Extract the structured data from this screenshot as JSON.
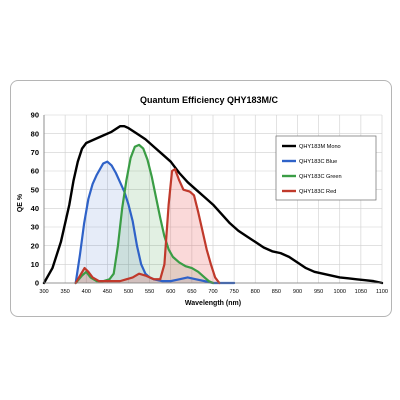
{
  "chart_data": {
    "type": "line",
    "title": "Quantum Efficiency QHY183M/C",
    "xlabel": "Wavelength (nm)",
    "ylabel": "QE %",
    "xlim": [
      300,
      1100
    ],
    "ylim": [
      0,
      90
    ],
    "x_ticks": [
      300,
      350,
      400,
      450,
      500,
      550,
      600,
      650,
      700,
      750,
      800,
      850,
      900,
      950,
      1000,
      1050,
      1100
    ],
    "y_ticks": [
      0,
      10,
      20,
      30,
      40,
      50,
      60,
      70,
      80,
      90
    ],
    "grid": true,
    "legend_position": "right",
    "series": [
      {
        "name": "QHY183M Mono",
        "color": "#000000",
        "points": [
          [
            300,
            0
          ],
          [
            320,
            8
          ],
          [
            340,
            22
          ],
          [
            360,
            42
          ],
          [
            370,
            55
          ],
          [
            380,
            65
          ],
          [
            390,
            72
          ],
          [
            400,
            75
          ],
          [
            420,
            77
          ],
          [
            440,
            79
          ],
          [
            460,
            81
          ],
          [
            480,
            84
          ],
          [
            490,
            84
          ],
          [
            500,
            83
          ],
          [
            520,
            80
          ],
          [
            540,
            77
          ],
          [
            560,
            73
          ],
          [
            580,
            69
          ],
          [
            600,
            65
          ],
          [
            620,
            59
          ],
          [
            640,
            54
          ],
          [
            660,
            50
          ],
          [
            680,
            46
          ],
          [
            700,
            42
          ],
          [
            720,
            37
          ],
          [
            740,
            32
          ],
          [
            760,
            28
          ],
          [
            780,
            25
          ],
          [
            800,
            22
          ],
          [
            820,
            19
          ],
          [
            840,
            17
          ],
          [
            860,
            16
          ],
          [
            880,
            14
          ],
          [
            900,
            11
          ],
          [
            920,
            8
          ],
          [
            940,
            6
          ],
          [
            960,
            5
          ],
          [
            980,
            4
          ],
          [
            1000,
            3
          ],
          [
            1020,
            2.5
          ],
          [
            1040,
            2
          ],
          [
            1060,
            1.5
          ],
          [
            1080,
            1
          ],
          [
            1100,
            0
          ]
        ]
      },
      {
        "name": "QHY183C Blue",
        "color": "#2f62c8",
        "points": [
          [
            375,
            0
          ],
          [
            385,
            15
          ],
          [
            395,
            32
          ],
          [
            405,
            45
          ],
          [
            415,
            53
          ],
          [
            425,
            58
          ],
          [
            440,
            64
          ],
          [
            450,
            65
          ],
          [
            460,
            63
          ],
          [
            470,
            59
          ],
          [
            480,
            54
          ],
          [
            490,
            49
          ],
          [
            500,
            42
          ],
          [
            510,
            33
          ],
          [
            520,
            20
          ],
          [
            530,
            10
          ],
          [
            540,
            5
          ],
          [
            550,
            3
          ],
          [
            560,
            2
          ],
          [
            580,
            1
          ],
          [
            600,
            1
          ],
          [
            620,
            2
          ],
          [
            640,
            3
          ],
          [
            660,
            2
          ],
          [
            680,
            1
          ],
          [
            700,
            0
          ],
          [
            750,
            0
          ]
        ]
      },
      {
        "name": "QHY183C Green",
        "color": "#3a9d45",
        "points": [
          [
            375,
            0
          ],
          [
            390,
            4
          ],
          [
            400,
            6
          ],
          [
            410,
            3
          ],
          [
            425,
            1
          ],
          [
            440,
            1
          ],
          [
            455,
            2
          ],
          [
            465,
            5
          ],
          [
            475,
            20
          ],
          [
            485,
            40
          ],
          [
            495,
            55
          ],
          [
            505,
            67
          ],
          [
            515,
            73
          ],
          [
            525,
            74
          ],
          [
            535,
            72
          ],
          [
            545,
            66
          ],
          [
            555,
            57
          ],
          [
            565,
            46
          ],
          [
            575,
            35
          ],
          [
            585,
            25
          ],
          [
            595,
            18
          ],
          [
            605,
            14
          ],
          [
            620,
            11
          ],
          [
            635,
            9
          ],
          [
            650,
            8
          ],
          [
            665,
            6
          ],
          [
            680,
            3
          ],
          [
            690,
            1
          ],
          [
            700,
            0
          ]
        ]
      },
      {
        "name": "QHY183C Red",
        "color": "#c0392b",
        "points": [
          [
            375,
            0
          ],
          [
            388,
            5
          ],
          [
            396,
            8
          ],
          [
            405,
            6
          ],
          [
            415,
            3
          ],
          [
            430,
            1
          ],
          [
            450,
            1
          ],
          [
            480,
            1
          ],
          [
            510,
            3
          ],
          [
            525,
            5
          ],
          [
            540,
            4
          ],
          [
            560,
            2
          ],
          [
            575,
            2
          ],
          [
            585,
            10
          ],
          [
            595,
            42
          ],
          [
            603,
            60
          ],
          [
            610,
            61
          ],
          [
            620,
            55
          ],
          [
            630,
            50
          ],
          [
            645,
            49
          ],
          [
            655,
            47
          ],
          [
            665,
            38
          ],
          [
            675,
            28
          ],
          [
            685,
            18
          ],
          [
            695,
            10
          ],
          [
            705,
            3
          ],
          [
            715,
            0
          ]
        ]
      }
    ]
  }
}
